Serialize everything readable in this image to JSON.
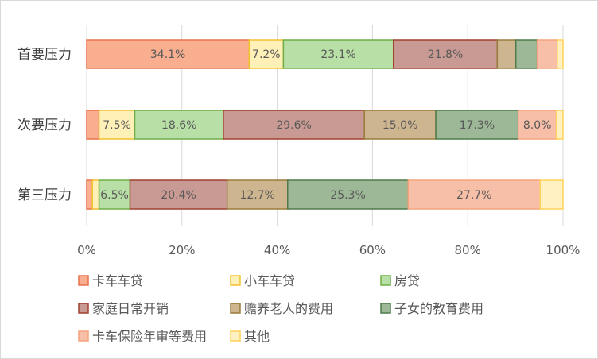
{
  "chart_data": {
    "type": "bar",
    "orientation": "horizontal",
    "stacked": "percent",
    "categories": [
      "首要压力",
      "次要压力",
      "第三压力"
    ],
    "xlim": [
      0,
      100
    ],
    "x_ticks": [
      "0%",
      "20%",
      "40%",
      "60%",
      "80%",
      "100%"
    ],
    "grid": true,
    "legend_position": "bottom",
    "series": [
      {
        "name": "卡车车贷",
        "values": [
          34.1,
          2.6,
          1.2
        ],
        "labels": [
          "34.1%",
          "",
          ""
        ],
        "color": "#F8AE8F",
        "border": "#E8724A"
      },
      {
        "name": "小车车贷",
        "values": [
          7.2,
          7.5,
          1.4
        ],
        "labels": [
          "7.2%",
          "7.5%",
          ""
        ],
        "color": "#FFF0B8",
        "border": "#F2C12E"
      },
      {
        "name": "房贷",
        "values": [
          23.1,
          18.6,
          6.5
        ],
        "labels": [
          "23.1%",
          "18.6%",
          "6.5%"
        ],
        "color": "#B7DFA6",
        "border": "#70AD47"
      },
      {
        "name": "家庭日常开销",
        "values": [
          21.8,
          29.6,
          20.4
        ],
        "labels": [
          "21.8%",
          "29.6%",
          "20.4%"
        ],
        "color": "#C99A93",
        "border": "#A0402E"
      },
      {
        "name": "赡养老人的费用",
        "values": [
          3.9,
          15.0,
          12.7
        ],
        "labels": [
          "",
          "15.0%",
          "12.7%"
        ],
        "color": "#CDB68F",
        "border": "#997D3A"
      },
      {
        "name": "子女的教育费用",
        "values": [
          4.5,
          17.3,
          25.3
        ],
        "labels": [
          "",
          "17.3%",
          "25.3%"
        ],
        "color": "#9DB896",
        "border": "#4F7A4A"
      },
      {
        "name": "卡车保险年审等费用",
        "values": [
          4.2,
          8.0,
          27.7
        ],
        "labels": [
          "",
          "8.0%",
          "27.7%"
        ],
        "color": "#F8BFA8",
        "border": "#F4A47E"
      },
      {
        "name": "其他",
        "values": [
          1.2,
          1.4,
          4.8
        ],
        "labels": [
          "",
          "",
          ""
        ],
        "color": "#FFF1C2",
        "border": "#FFD35A"
      }
    ]
  }
}
